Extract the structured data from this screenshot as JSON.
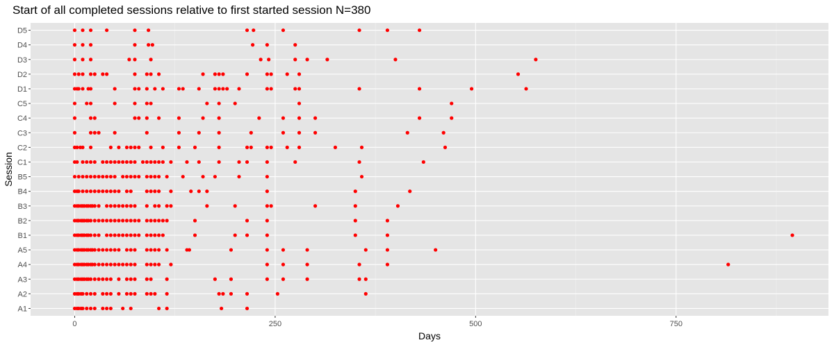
{
  "chart_data": {
    "type": "scatter",
    "title": "Start of all completed sessions relative to first started session N=380",
    "xlabel": "Days",
    "ylabel": "Session",
    "xlim": [
      -55,
      940
    ],
    "x_ticks": [
      0,
      250,
      500,
      750
    ],
    "x_minor_ticks": [
      125,
      375,
      625,
      875
    ],
    "categories": [
      "A1",
      "A2",
      "A3",
      "A4",
      "A5",
      "B1",
      "B2",
      "B3",
      "B4",
      "B5",
      "C1",
      "C2",
      "C3",
      "C4",
      "C5",
      "D1",
      "D2",
      "D3",
      "D4",
      "D5"
    ],
    "grid": true,
    "panel_background": "#e5e5e5",
    "point_color": "#ff0000",
    "points": {
      "D5": [
        0,
        10,
        20,
        40,
        75,
        92,
        215,
        223,
        260,
        355,
        390,
        430
      ],
      "D4": [
        0,
        10,
        20,
        75,
        92,
        97,
        222,
        240,
        275
      ],
      "D3": [
        0,
        10,
        20,
        68,
        75,
        95,
        232,
        242,
        275,
        290,
        315,
        400,
        575
      ],
      "D2": [
        0,
        5,
        10,
        20,
        25,
        35,
        40,
        75,
        90,
        95,
        105,
        160,
        175,
        180,
        185,
        215,
        240,
        245,
        265,
        280,
        553
      ],
      "D1": [
        0,
        3,
        5,
        10,
        17,
        20,
        50,
        75,
        80,
        90,
        100,
        110,
        130,
        135,
        155,
        175,
        180,
        185,
        190,
        205,
        240,
        245,
        275,
        280,
        355,
        430,
        495,
        563
      ],
      "C5": [
        0,
        15,
        20,
        50,
        75,
        90,
        95,
        165,
        180,
        200,
        280,
        470
      ],
      "C4": [
        0,
        20,
        25,
        75,
        80,
        90,
        105,
        130,
        160,
        180,
        230,
        260,
        280,
        300,
        430,
        470
      ],
      "C3": [
        0,
        20,
        25,
        30,
        50,
        90,
        130,
        155,
        180,
        220,
        260,
        280,
        300,
        415,
        460
      ],
      "C2": [
        0,
        3,
        7,
        10,
        20,
        45,
        55,
        65,
        70,
        75,
        80,
        95,
        110,
        130,
        150,
        180,
        215,
        220,
        240,
        245,
        265,
        280,
        325,
        358,
        462
      ],
      "C1": [
        0,
        3,
        10,
        15,
        20,
        25,
        35,
        40,
        45,
        50,
        55,
        60,
        65,
        70,
        75,
        85,
        90,
        95,
        100,
        105,
        110,
        120,
        140,
        155,
        180,
        205,
        215,
        240,
        275,
        355,
        435
      ],
      "B5": [
        0,
        5,
        10,
        15,
        20,
        25,
        30,
        35,
        40,
        45,
        50,
        60,
        65,
        70,
        75,
        80,
        90,
        95,
        100,
        105,
        115,
        135,
        160,
        175,
        205,
        240,
        358
      ],
      "B4": [
        0,
        3,
        5,
        10,
        15,
        20,
        25,
        30,
        35,
        40,
        45,
        50,
        55,
        65,
        70,
        90,
        95,
        100,
        105,
        120,
        145,
        155,
        165,
        240,
        350,
        418
      ],
      "B3": [
        0,
        3,
        5,
        8,
        10,
        12,
        15,
        17,
        20,
        22,
        25,
        30,
        40,
        45,
        50,
        55,
        60,
        65,
        70,
        75,
        90,
        100,
        105,
        115,
        120,
        165,
        200,
        240,
        245,
        300,
        350,
        403
      ],
      "B2": [
        0,
        3,
        5,
        8,
        10,
        12,
        15,
        17,
        20,
        25,
        30,
        35,
        40,
        45,
        50,
        55,
        60,
        65,
        70,
        75,
        80,
        90,
        95,
        100,
        105,
        110,
        115,
        150,
        215,
        240,
        350,
        390
      ],
      "B1": [
        0,
        3,
        5,
        8,
        10,
        12,
        15,
        17,
        20,
        25,
        30,
        40,
        45,
        50,
        55,
        60,
        65,
        70,
        75,
        80,
        90,
        95,
        100,
        105,
        110,
        150,
        200,
        215,
        240,
        350,
        390,
        895
      ],
      "A5": [
        0,
        3,
        5,
        8,
        10,
        12,
        15,
        17,
        20,
        22,
        25,
        30,
        35,
        40,
        45,
        50,
        55,
        65,
        70,
        75,
        90,
        95,
        100,
        105,
        115,
        140,
        143,
        195,
        240,
        260,
        290,
        363,
        390,
        450
      ],
      "A4": [
        0,
        3,
        5,
        8,
        10,
        12,
        15,
        17,
        20,
        22,
        25,
        30,
        35,
        40,
        45,
        50,
        55,
        60,
        65,
        70,
        75,
        90,
        95,
        100,
        105,
        120,
        240,
        260,
        290,
        355,
        390,
        815
      ],
      "A3": [
        0,
        3,
        5,
        8,
        10,
        12,
        15,
        17,
        20,
        25,
        30,
        35,
        40,
        45,
        55,
        65,
        70,
        75,
        90,
        95,
        115,
        175,
        195,
        240,
        260,
        290,
        355,
        363
      ],
      "A2": [
        0,
        3,
        5,
        8,
        10,
        15,
        20,
        25,
        35,
        40,
        45,
        55,
        65,
        70,
        75,
        90,
        95,
        100,
        115,
        180,
        185,
        195,
        215,
        253,
        363
      ],
      "A1": [
        0,
        3,
        5,
        8,
        10,
        15,
        20,
        25,
        35,
        40,
        45,
        60,
        70,
        105,
        115,
        183,
        215
      ]
    }
  }
}
